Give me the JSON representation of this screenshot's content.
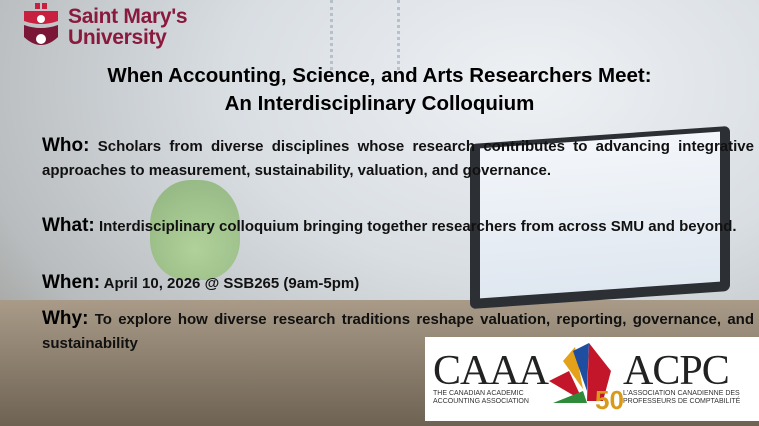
{
  "logo": {
    "line1": "Saint Mary's",
    "line2": "University",
    "color": "#8a1a3d"
  },
  "title": {
    "line1": "When Accounting, Science, and Arts Researchers Meet:",
    "line2": "An Interdisciplinary Colloquium"
  },
  "sections": [
    {
      "label": "Who:",
      "text": "Scholars from diverse disciplines whose research contributes to advancing integrative approaches to measurement, sustainability, valuation, and governance."
    },
    {
      "label": "What:",
      "text": "Interdisciplinary colloquium bringing together researchers from across SMU and beyond."
    },
    {
      "label": "When:",
      "text": "April 10, 2026 @ SSB265 (9am-5pm)"
    },
    {
      "label": "Why:",
      "text": "To explore how diverse research traditions reshape valuation, reporting, governance, and sustainability"
    }
  ],
  "partner_logo": {
    "left_acronym": "CAAA",
    "left_name_1": "THE CANADIAN ACADEMIC",
    "left_name_2": "ACCOUNTING ASSOCIATION",
    "right_acronym": "ACPC",
    "right_name_1": "L'ASSOCIATION CANADIENNE DES",
    "right_name_2": "PROFESSEURS DE COMPTABILITÉ",
    "anniversary": "50"
  }
}
